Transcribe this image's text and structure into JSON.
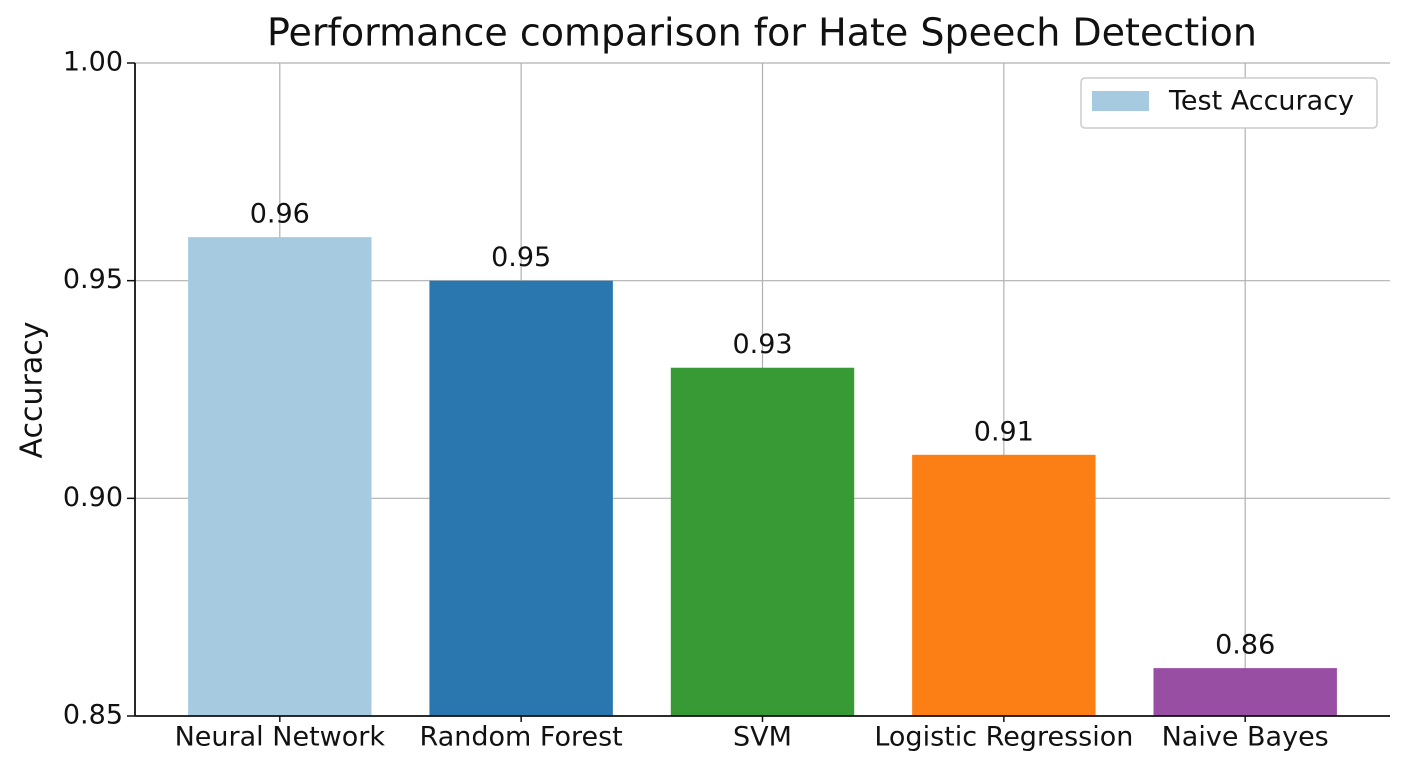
{
  "chart_data": {
    "type": "bar",
    "title": "Performance comparison for Hate Speech Detection",
    "ylabel": "Accuracy",
    "categories": [
      "Neural Network",
      "Random Forest",
      "SVM",
      "Logistic Regression",
      "Naive Bayes"
    ],
    "series": [
      {
        "name": "Test Accuracy",
        "color": "#a6cbe0",
        "values": [
          0.96,
          0.95,
          0.93,
          0.91,
          0.861
        ],
        "value_labels": [
          "0.96",
          "0.95",
          "0.93",
          "0.91",
          "0.86"
        ],
        "colors": [
          "#a6cbe0",
          "#2a76ae",
          "#379a34",
          "#fb7f14",
          "#984ea3"
        ]
      }
    ],
    "ylim": [
      0.85,
      1.0
    ],
    "yticks": [
      0.85,
      {
        "value": 0.9,
        "label": "0.90"
      },
      0.95,
      {
        "value": 1.0,
        "label": "1.00"
      }
    ],
    "grid": true,
    "legend": "upper right"
  }
}
